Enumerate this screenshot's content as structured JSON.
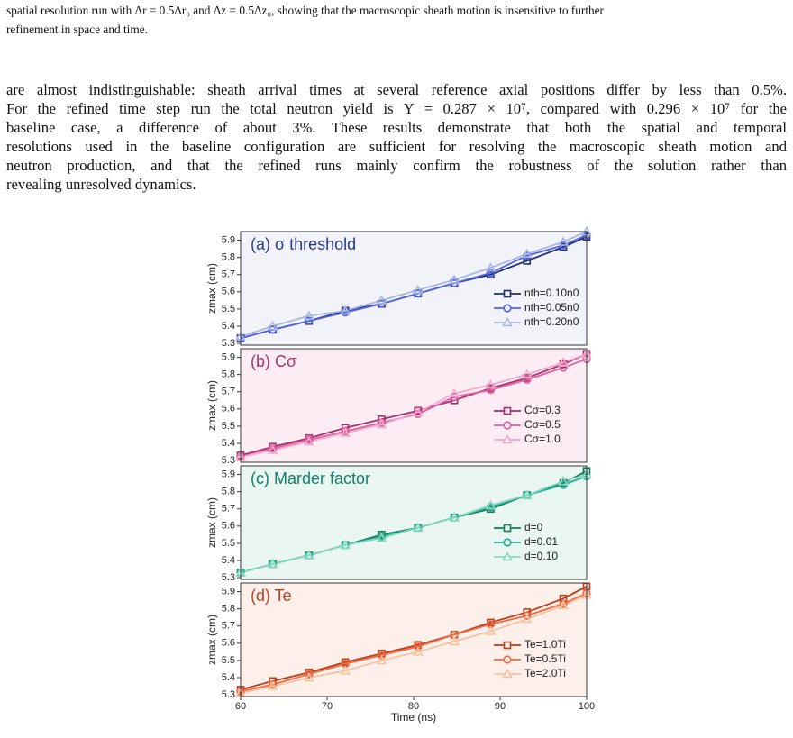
{
  "caption": {
    "lines": [
      "spatial resolution run with Δr = 0.5Δr₀ and Δz = 0.5Δz₀, showing that the macroscopic sheath motion is insensitive to further",
      "refinement in space and time."
    ]
  },
  "paragraph": {
    "lines": [
      "are almost indistinguishable: sheath arrival times at several reference axial positions differ by less than 0.5%.",
      "For the refined time step run the total neutron yield is Y = 0.287 × 10⁷, compared with 0.296 × 10⁷ for the",
      "baseline case, a difference of about 3%. These results demonstrate that both the spatial and temporal",
      "resolutions used in the baseline configuration are sufficient for resolving the macroscopic sheath motion and",
      "neutron production, and that the refined runs mainly confirm the robustness of the solution rather than",
      "revealing unresolved dynamics."
    ]
  },
  "chart_data": [
    {
      "type": "line",
      "title": "(a) σ threshold",
      "title_color": "#2a3a8a",
      "background": "#f1f3f9",
      "ylabel": "zmax (cm)",
      "x": [
        60,
        63.7,
        67.9,
        72.1,
        76.3,
        80.5,
        84.7,
        88.9,
        93.1,
        97.3,
        100
      ],
      "xlim": [
        60,
        100
      ],
      "ylim": [
        5.29,
        5.95
      ],
      "yticks": [
        5.3,
        5.4,
        5.5,
        5.6,
        5.7,
        5.8,
        5.9
      ],
      "series": [
        {
          "name": "nth=0.10n0",
          "color": "#1f2d6e",
          "marker": "square",
          "values": [
            5.33,
            5.38,
            5.43,
            5.49,
            5.53,
            5.59,
            5.65,
            5.7,
            5.78,
            5.86,
            5.92
          ]
        },
        {
          "name": "nth=0.05n0",
          "color": "#5563e0",
          "marker": "circle",
          "values": [
            5.33,
            5.38,
            5.43,
            5.48,
            5.53,
            5.59,
            5.65,
            5.71,
            5.81,
            5.87,
            5.93
          ]
        },
        {
          "name": "nth=0.20n0",
          "color": "#a9b8e2",
          "marker": "triangle",
          "values": [
            5.34,
            5.4,
            5.46,
            5.49,
            5.55,
            5.61,
            5.67,
            5.74,
            5.82,
            5.89,
            5.95
          ]
        }
      ]
    },
    {
      "type": "line",
      "title": "(b) Cσ",
      "title_color": "#b0306a",
      "background": "#fcecf3",
      "ylabel": "zmax (cm)",
      "x": [
        60,
        63.7,
        67.9,
        72.1,
        76.3,
        80.5,
        84.7,
        88.9,
        93.1,
        97.3,
        100
      ],
      "xlim": [
        60,
        100
      ],
      "ylim": [
        5.29,
        5.95
      ],
      "yticks": [
        5.3,
        5.4,
        5.5,
        5.6,
        5.7,
        5.8,
        5.9
      ],
      "series": [
        {
          "name": "Cσ=0.3",
          "color": "#a3306b",
          "marker": "square",
          "values": [
            5.33,
            5.38,
            5.43,
            5.49,
            5.54,
            5.59,
            5.65,
            5.72,
            5.78,
            5.86,
            5.92
          ]
        },
        {
          "name": "Cσ=0.5",
          "color": "#e062a2",
          "marker": "circle",
          "values": [
            5.32,
            5.37,
            5.42,
            5.47,
            5.52,
            5.57,
            5.67,
            5.71,
            5.77,
            5.84,
            5.89
          ]
        },
        {
          "name": "Cσ=1.0",
          "color": "#f2a9ca",
          "marker": "triangle",
          "values": [
            5.32,
            5.36,
            5.41,
            5.46,
            5.51,
            5.58,
            5.69,
            5.74,
            5.8,
            5.87,
            5.92
          ]
        }
      ]
    },
    {
      "type": "line",
      "title": "(c) Marder factor",
      "title_color": "#12806a",
      "background": "#eaf6f1",
      "ylabel": "zmax (cm)",
      "x": [
        60,
        63.7,
        67.9,
        72.1,
        76.3,
        80.5,
        84.7,
        88.9,
        93.1,
        97.3,
        100
      ],
      "xlim": [
        60,
        100
      ],
      "ylim": [
        5.29,
        5.95
      ],
      "yticks": [
        5.3,
        5.4,
        5.5,
        5.6,
        5.7,
        5.8,
        5.9
      ],
      "series": [
        {
          "name": "d=0",
          "color": "#137a5a",
          "marker": "square",
          "values": [
            5.33,
            5.38,
            5.43,
            5.49,
            5.55,
            5.59,
            5.65,
            5.7,
            5.78,
            5.85,
            5.92
          ]
        },
        {
          "name": "d=0.01",
          "color": "#22b090",
          "marker": "circle",
          "values": [
            5.33,
            5.38,
            5.43,
            5.49,
            5.54,
            5.59,
            5.65,
            5.71,
            5.78,
            5.84,
            5.89
          ]
        },
        {
          "name": "d=0.10",
          "color": "#8ad8c0",
          "marker": "triangle",
          "values": [
            5.33,
            5.38,
            5.43,
            5.49,
            5.53,
            5.59,
            5.65,
            5.72,
            5.78,
            5.86,
            5.9
          ]
        }
      ]
    },
    {
      "type": "line",
      "title": "(d) Te",
      "title_color": "#c04020",
      "background": "#fdf0ea",
      "ylabel": "zmax (cm)",
      "xlabel": "Time (ns)",
      "x": [
        60,
        63.7,
        67.9,
        72.1,
        76.3,
        80.5,
        84.7,
        88.9,
        93.1,
        97.3,
        100
      ],
      "xlim": [
        60,
        100
      ],
      "xticks": [
        60,
        70,
        80,
        90,
        100
      ],
      "ylim": [
        5.29,
        5.95
      ],
      "yticks": [
        5.3,
        5.4,
        5.5,
        5.6,
        5.7,
        5.8,
        5.9
      ],
      "series": [
        {
          "name": "Te=1.0Ti",
          "color": "#b8401c",
          "marker": "square",
          "values": [
            5.33,
            5.38,
            5.43,
            5.49,
            5.54,
            5.59,
            5.65,
            5.72,
            5.78,
            5.86,
            5.93
          ]
        },
        {
          "name": "Te=0.5Ti",
          "color": "#f06a42",
          "marker": "circle",
          "values": [
            5.32,
            5.36,
            5.42,
            5.48,
            5.53,
            5.58,
            5.65,
            5.71,
            5.76,
            5.83,
            5.89
          ]
        },
        {
          "name": "Te=2.0Ti",
          "color": "#f8c2a2",
          "marker": "triangle",
          "values": [
            5.31,
            5.35,
            5.4,
            5.44,
            5.5,
            5.55,
            5.61,
            5.67,
            5.74,
            5.82,
            5.88
          ]
        }
      ]
    }
  ]
}
